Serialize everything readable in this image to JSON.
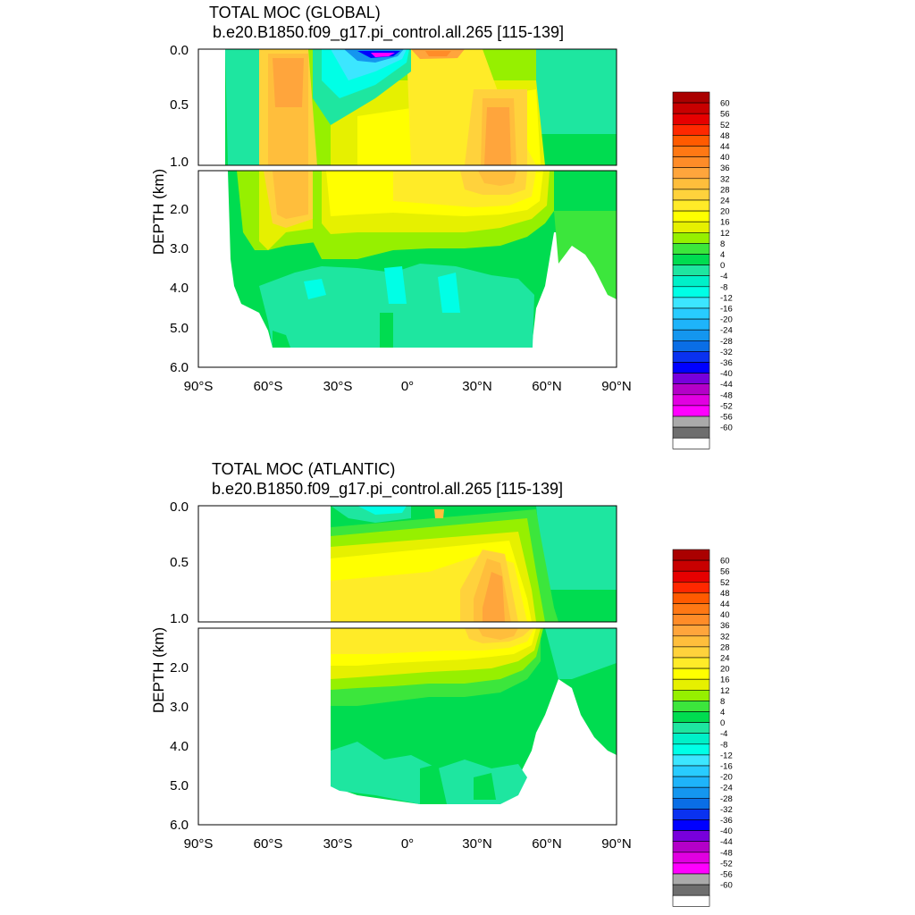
{
  "chart_data": [
    {
      "type": "heatmap",
      "title": "TOTAL MOC (GLOBAL)",
      "subtitle": "b.e20.B1850.f09_g17.pi_control.all.265 [115-139]",
      "ylabel": "DEPTH (km)",
      "xlabel": "",
      "xlim": [
        -90,
        90
      ],
      "ylim": [
        6.0,
        0.0
      ],
      "ytick_labels": [
        "0.0",
        "0.5",
        "1.0",
        "2.0",
        "3.0",
        "4.0",
        "5.0",
        "6.0"
      ],
      "xtick_labels": [
        "90°S",
        "60°S",
        "30°S",
        "0°",
        "30°N",
        "60°N",
        "90°N"
      ],
      "colorbar": {
        "levels": [
          "60",
          "56",
          "52",
          "48",
          "44",
          "40",
          "36",
          "32",
          "28",
          "24",
          "20",
          "16",
          "12",
          "8",
          "4",
          "0",
          "-4",
          "-8",
          "-12",
          "-16",
          "-20",
          "-24",
          "-28",
          "-32",
          "-36",
          "-40",
          "-44",
          "-48",
          "-52",
          "-56",
          "-60"
        ]
      }
    },
    {
      "type": "heatmap",
      "title": "TOTAL MOC (ATLANTIC)",
      "subtitle": "b.e20.B1850.f09_g17.pi_control.all.265 [115-139]",
      "ylabel": "DEPTH (km)",
      "xlabel": "",
      "xlim": [
        -90,
        90
      ],
      "ylim": [
        6.0,
        0.0
      ],
      "ytick_labels": [
        "0.0",
        "0.5",
        "1.0",
        "2.0",
        "3.0",
        "4.0",
        "5.0",
        "6.0"
      ],
      "xtick_labels": [
        "90°S",
        "60°S",
        "30°S",
        "0°",
        "30°N",
        "60°N",
        "90°N"
      ],
      "colorbar": {
        "levels": [
          "60",
          "56",
          "52",
          "48",
          "44",
          "40",
          "36",
          "32",
          "28",
          "24",
          "20",
          "16",
          "12",
          "8",
          "4",
          "0",
          "-4",
          "-8",
          "-12",
          "-16",
          "-20",
          "-24",
          "-28",
          "-32",
          "-36",
          "-40",
          "-44",
          "-48",
          "-52",
          "-56",
          "-60"
        ]
      }
    }
  ],
  "colors": {
    "scale": [
      "#FFFFFF",
      "#6E6E6E",
      "#AAAAAA",
      "#FF00FF",
      "#E100E1",
      "#B400C8",
      "#7800DC",
      "#0000FF",
      "#0A32F0",
      "#0A6EE6",
      "#1496EF",
      "#1EB4FA",
      "#28CCFF",
      "#3CE6FF",
      "#00FFE6",
      "#00F0C8",
      "#1EE6A0",
      "#00DC50",
      "#3CE63C",
      "#96F000",
      "#E6F000",
      "#FFFF00",
      "#FFEB28",
      "#FFD23C",
      "#FFBE3C",
      "#FFA53C",
      "#FF8C28",
      "#FF7814",
      "#FF5A00",
      "#FF2800",
      "#E60000",
      "#C80000",
      "#AA0000"
    ]
  }
}
